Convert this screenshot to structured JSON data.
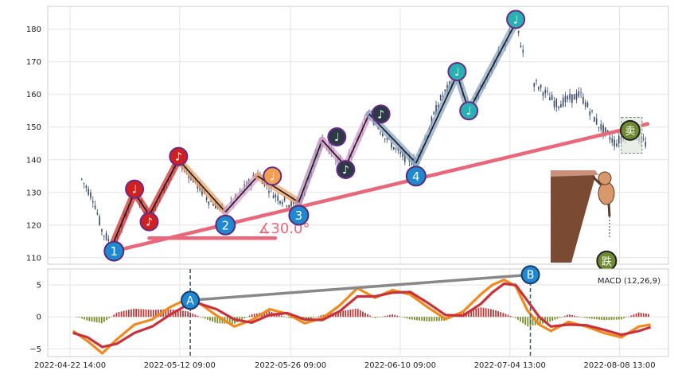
{
  "chart_data": [
    {
      "type": "candlestick",
      "title": "",
      "xlabel": "",
      "ylabel": "",
      "ylim": [
        108,
        187
      ],
      "yticks": [
        110,
        120,
        130,
        140,
        150,
        160,
        170,
        180
      ],
      "grid": true,
      "x_tick_labels": [
        "2022-04-22 14:00",
        "2022-05-12 09:00",
        "2022-05-26 09:00",
        "2022-06-10 09:00",
        "2022-07-04 13:00",
        "2022-08-08 13:00"
      ],
      "price_path": [
        {
          "x": 0.02,
          "y": 134
        },
        {
          "x": 0.04,
          "y": 128
        },
        {
          "x": 0.055,
          "y": 118
        },
        {
          "x": 0.075,
          "y": 113
        },
        {
          "x": 0.11,
          "y": 131
        },
        {
          "x": 0.135,
          "y": 122
        },
        {
          "x": 0.185,
          "y": 140
        },
        {
          "x": 0.235,
          "y": 128
        },
        {
          "x": 0.265,
          "y": 124
        },
        {
          "x": 0.32,
          "y": 136
        },
        {
          "x": 0.35,
          "y": 129
        },
        {
          "x": 0.39,
          "y": 125
        },
        {
          "x": 0.43,
          "y": 146
        },
        {
          "x": 0.47,
          "y": 138
        },
        {
          "x": 0.51,
          "y": 154
        },
        {
          "x": 0.56,
          "y": 142
        },
        {
          "x": 0.59,
          "y": 139
        },
        {
          "x": 0.63,
          "y": 158
        },
        {
          "x": 0.66,
          "y": 166
        },
        {
          "x": 0.68,
          "y": 155
        },
        {
          "x": 0.72,
          "y": 168
        },
        {
          "x": 0.76,
          "y": 182
        },
        {
          "x": 0.775,
          "y": 171
        },
        {
          "x": 0.79,
          "y": 164
        },
        {
          "x": 0.83,
          "y": 157
        },
        {
          "x": 0.87,
          "y": 160
        },
        {
          "x": 0.9,
          "y": 151
        },
        {
          "x": 0.93,
          "y": 145
        },
        {
          "x": 0.955,
          "y": 149
        },
        {
          "x": 0.98,
          "y": 145
        }
      ],
      "zigzag": [
        {
          "x": 0.075,
          "y": 115,
          "color": "#d12f2f"
        },
        {
          "x": 0.11,
          "y": 130,
          "color": "#d12f2f"
        },
        {
          "x": 0.135,
          "y": 123,
          "color": "#d12f2f"
        },
        {
          "x": 0.185,
          "y": 140,
          "color": "#d12f2f"
        },
        {
          "x": 0.265,
          "y": 124,
          "color": "#e9a06a"
        },
        {
          "x": 0.32,
          "y": 135,
          "color": "#d9a0d0"
        },
        {
          "x": 0.39,
          "y": 127,
          "color": "#e9a06a"
        },
        {
          "x": 0.43,
          "y": 146,
          "color": "#b38bb8"
        },
        {
          "x": 0.47,
          "y": 138,
          "color": "#d9a0d0"
        },
        {
          "x": 0.51,
          "y": 154,
          "color": "#d9a0d0"
        },
        {
          "x": 0.59,
          "y": 139,
          "color": "#8aa4c4"
        },
        {
          "x": 0.66,
          "y": 166,
          "color": "#8aa4c4"
        },
        {
          "x": 0.68,
          "y": 155,
          "color": "#8aa4c4"
        },
        {
          "x": 0.76,
          "y": 182,
          "color": "#8aa4c4"
        }
      ],
      "trendlines": [
        {
          "from": {
            "x": 0.075,
            "y": 112
          },
          "to": {
            "x": 0.985,
            "y": 151
          },
          "color": "#e8677a"
        },
        {
          "from": {
            "x": 0.135,
            "y": 116
          },
          "to": {
            "x": 0.35,
            "y": 116
          },
          "color": "#e8677a"
        }
      ],
      "angle_label": "∡30.0°",
      "angle_anchor": {
        "x": 0.345,
        "y": 116.5
      },
      "wave_labels": [
        {
          "label": "1",
          "x": 0.075,
          "y": 112
        },
        {
          "label": "2",
          "x": 0.265,
          "y": 120
        },
        {
          "label": "3",
          "x": 0.39,
          "y": 123
        },
        {
          "label": "4",
          "x": 0.59,
          "y": 135
        }
      ],
      "note_markers": [
        {
          "glyph": "♩",
          "x": 0.11,
          "y": 131,
          "color": "#d12020"
        },
        {
          "glyph": "♪",
          "x": 0.135,
          "y": 121,
          "color": "#d12020"
        },
        {
          "glyph": "♪",
          "x": 0.185,
          "y": 141,
          "color": "#d12020"
        },
        {
          "glyph": "♩",
          "x": 0.345,
          "y": 135,
          "color": "#f0a050"
        },
        {
          "glyph": "♩",
          "x": 0.455,
          "y": 147,
          "color": "#2b3a44"
        },
        {
          "glyph": "♪",
          "x": 0.47,
          "y": 137,
          "color": "#2b3a44"
        },
        {
          "glyph": "♪",
          "x": 0.53,
          "y": 154,
          "color": "#2b3a44"
        },
        {
          "glyph": "♩",
          "x": 0.66,
          "y": 167,
          "color": "#29b0b0"
        },
        {
          "glyph": "♩",
          "x": 0.68,
          "y": 155,
          "color": "#29b0b0"
        },
        {
          "glyph": "♩",
          "x": 0.76,
          "y": 183,
          "color": "#29b0b0"
        }
      ],
      "cjk_badges": [
        {
          "glyph": "卖",
          "x": 0.955,
          "y": 149
        },
        {
          "glyph": "跌",
          "x": 0.915,
          "y": 109
        }
      ]
    },
    {
      "type": "line+bar",
      "title": "",
      "legend": "MACD (12,26,9)",
      "ylim": [
        -6.2,
        7.5
      ],
      "yticks": [
        -5,
        0,
        5
      ],
      "grid": true,
      "macd_line": {
        "color": "#f08a1e",
        "x": [
          0.005,
          0.03,
          0.055,
          0.08,
          0.11,
          0.14,
          0.17,
          0.2,
          0.22,
          0.25,
          0.28,
          0.31,
          0.34,
          0.37,
          0.4,
          0.43,
          0.46,
          0.49,
          0.52,
          0.55,
          0.58,
          0.61,
          0.64,
          0.67,
          0.7,
          0.72,
          0.74,
          0.76,
          0.78,
          0.8,
          0.82,
          0.85,
          0.88,
          0.91,
          0.94,
          0.97,
          0.99
        ],
        "values": [
          -2.2,
          -3.8,
          -5.7,
          -3.5,
          -1.2,
          -0.4,
          1.5,
          2.8,
          2.2,
          0.2,
          -1.5,
          -0.5,
          1.2,
          0.5,
          -1.0,
          -0.2,
          1.8,
          4.5,
          3.0,
          4.2,
          3.5,
          1.5,
          -0.3,
          0.8,
          3.5,
          5.0,
          5.8,
          4.8,
          1.0,
          -1.2,
          -2.2,
          -0.8,
          -1.5,
          -2.5,
          -3.2,
          -1.5,
          -1.2
        ]
      },
      "signal_line": {
        "color": "#c8323a",
        "x": [
          0.005,
          0.03,
          0.055,
          0.08,
          0.11,
          0.14,
          0.17,
          0.2,
          0.22,
          0.25,
          0.28,
          0.31,
          0.34,
          0.37,
          0.4,
          0.43,
          0.46,
          0.49,
          0.52,
          0.55,
          0.58,
          0.61,
          0.64,
          0.67,
          0.7,
          0.72,
          0.74,
          0.76,
          0.78,
          0.8,
          0.82,
          0.85,
          0.88,
          0.91,
          0.94,
          0.97,
          0.99
        ],
        "values": [
          -2.5,
          -3.2,
          -4.7,
          -4.2,
          -2.5,
          -1.5,
          0.3,
          1.9,
          2.1,
          1.2,
          -0.4,
          -0.9,
          0.3,
          0.6,
          -0.4,
          -0.5,
          0.9,
          3.2,
          3.2,
          3.8,
          3.9,
          2.2,
          0.3,
          0.2,
          2.0,
          3.8,
          5.2,
          5.0,
          2.5,
          0.0,
          -1.5,
          -1.2,
          -1.3,
          -2.0,
          -2.8,
          -2.2,
          -1.6
        ]
      },
      "hist_colors": {
        "pos": "#b83a3a",
        "neg": "#7a8f2a"
      },
      "events": [
        {
          "label": "A",
          "x": 0.205,
          "y": 2.6
        },
        {
          "label": "B",
          "x": 0.785,
          "y": 6.6
        }
      ],
      "divergence_line": {
        "from": {
          "x": 0.205,
          "y": 2.6
        },
        "to": {
          "x": 0.785,
          "y": 6.6
        },
        "color": "#888888"
      }
    }
  ]
}
